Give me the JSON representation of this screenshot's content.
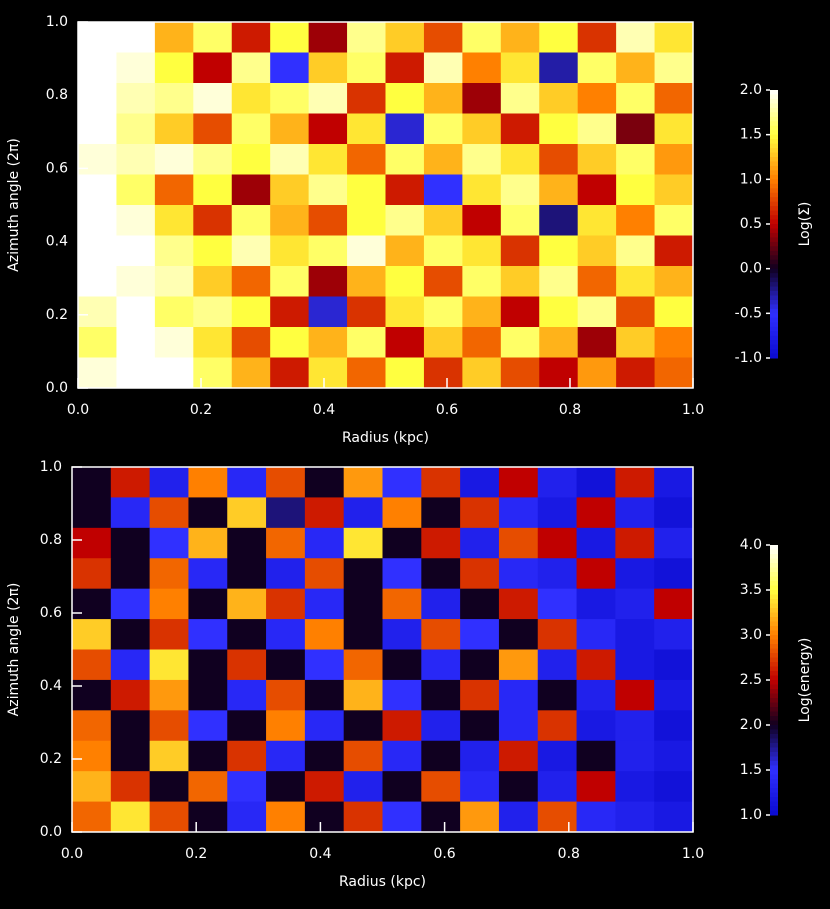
{
  "chart_data": [
    {
      "type": "heatmap",
      "xlabel": "Radius (kpc)",
      "ylabel": "Azimuth angle (2π)",
      "colorbar_label": "Log(Σ)",
      "xlim": [
        0,
        1
      ],
      "ylim": [
        0,
        1
      ],
      "xticks": [
        {
          "value": 0,
          "label": "0.0"
        },
        0.2,
        0.4,
        0.6,
        0.8,
        {
          "value": 1,
          "label": "1.0"
        }
      ],
      "yticks": [
        {
          "value": 0,
          "label": "0.0"
        },
        0.2,
        0.4,
        0.6,
        0.8,
        {
          "value": 1,
          "label": "1.0"
        }
      ],
      "zlim": [
        -1,
        2
      ],
      "zticks": [
        {
          "value": 2,
          "label": "2.0"
        },
        1.5,
        {
          "value": 1,
          "label": "1.0"
        },
        0.5,
        {
          "value": 0,
          "label": "0.0"
        },
        -0.5,
        {
          "value": -1,
          "label": "-1.0"
        }
      ],
      "colors": [
        "#0a0ad0",
        "#3030ff",
        "#100020",
        "#c00000",
        "#ff8000",
        "#ffff40",
        "#ffffff"
      ],
      "z": [
        [
          2.0,
          2.0,
          1.2,
          1.6,
          0.6,
          1.5,
          0.4,
          1.7,
          1.3,
          0.8,
          1.6,
          1.2,
          1.5,
          0.7,
          1.8,
          1.4
        ],
        [
          2.0,
          1.9,
          1.5,
          0.5,
          1.7,
          -0.5,
          1.3,
          1.6,
          0.6,
          1.8,
          1.0,
          1.4,
          -0.3,
          1.6,
          1.2,
          1.7
        ],
        [
          2.0,
          1.8,
          1.7,
          1.9,
          1.4,
          1.6,
          1.8,
          0.7,
          1.5,
          1.2,
          0.4,
          1.7,
          1.3,
          1.0,
          1.6,
          0.9
        ],
        [
          2.0,
          1.7,
          1.3,
          0.8,
          1.6,
          1.2,
          0.5,
          1.4,
          -0.4,
          1.6,
          1.3,
          0.6,
          1.5,
          1.7,
          0.3,
          1.4
        ],
        [
          1.9,
          1.8,
          1.9,
          1.7,
          1.5,
          1.8,
          1.4,
          0.9,
          1.6,
          1.2,
          1.7,
          1.4,
          0.8,
          1.3,
          1.6,
          1.1
        ],
        [
          2.0,
          1.6,
          0.9,
          1.5,
          0.4,
          1.3,
          1.7,
          1.5,
          0.6,
          -0.5,
          1.4,
          1.7,
          1.2,
          0.5,
          1.5,
          1.3
        ],
        [
          2.0,
          1.9,
          1.4,
          0.7,
          1.6,
          1.2,
          0.8,
          1.5,
          1.7,
          1.3,
          0.5,
          1.6,
          -0.2,
          1.4,
          1.0,
          1.6
        ],
        [
          2.0,
          2.0,
          1.7,
          1.5,
          1.8,
          1.4,
          1.6,
          1.9,
          1.2,
          1.6,
          1.4,
          0.7,
          1.5,
          1.3,
          1.7,
          0.6
        ],
        [
          2.0,
          1.9,
          1.8,
          1.3,
          0.9,
          1.6,
          0.4,
          1.2,
          1.5,
          0.8,
          1.6,
          1.3,
          1.7,
          0.9,
          1.4,
          1.2
        ],
        [
          1.8,
          2.0,
          1.6,
          1.7,
          1.5,
          0.6,
          -0.4,
          0.7,
          1.4,
          1.6,
          1.2,
          0.5,
          1.5,
          1.7,
          0.8,
          1.5
        ],
        [
          1.6,
          2.0,
          1.9,
          1.4,
          0.8,
          1.5,
          1.2,
          1.6,
          0.5,
          1.3,
          0.9,
          1.6,
          1.2,
          0.4,
          1.3,
          1.0
        ],
        [
          1.9,
          2.0,
          2.0,
          1.6,
          1.2,
          0.6,
          1.4,
          0.9,
          1.5,
          0.7,
          1.3,
          0.8,
          0.5,
          1.1,
          0.6,
          0.9
        ]
      ]
    },
    {
      "type": "heatmap",
      "xlabel": "Radius (kpc)",
      "ylabel": "Azimuth angle (2π)",
      "colorbar_label": "Log(energy)",
      "xlim": [
        0,
        1
      ],
      "ylim": [
        0,
        1
      ],
      "xticks": [
        {
          "value": 0,
          "label": "0.0"
        },
        0.2,
        0.4,
        0.6,
        0.8,
        {
          "value": 1,
          "label": "1.0"
        }
      ],
      "yticks": [
        {
          "value": 0,
          "label": "0.0"
        },
        0.2,
        0.4,
        0.6,
        0.8,
        {
          "value": 1,
          "label": "1.0"
        }
      ],
      "zlim": [
        1,
        4
      ],
      "zticks": [
        {
          "value": 4,
          "label": "4.0"
        },
        3.5,
        {
          "value": 3,
          "label": "3.0"
        },
        2.5,
        {
          "value": 2,
          "label": "2.0"
        },
        1.5,
        {
          "value": 1,
          "label": "1.0"
        }
      ],
      "colors": [
        "#0a0ad0",
        "#3030ff",
        "#100020",
        "#c00000",
        "#ff8000",
        "#ffff40",
        "#ffffff"
      ],
      "z": [
        [
          2.0,
          2.6,
          1.3,
          3.0,
          1.4,
          2.8,
          2.0,
          3.1,
          1.5,
          2.7,
          1.2,
          2.5,
          1.3,
          1.1,
          2.6,
          1.2
        ],
        [
          2.0,
          1.4,
          2.8,
          2.0,
          3.3,
          1.8,
          2.6,
          1.3,
          3.0,
          2.0,
          2.7,
          1.4,
          1.2,
          2.5,
          1.3,
          1.1
        ],
        [
          2.5,
          2.0,
          1.5,
          3.2,
          2.0,
          2.9,
          1.4,
          3.4,
          2.0,
          2.6,
          1.3,
          2.8,
          2.5,
          1.2,
          2.6,
          1.3
        ],
        [
          2.7,
          2.0,
          2.9,
          1.4,
          2.0,
          1.3,
          2.8,
          2.0,
          1.5,
          2.0,
          2.7,
          1.4,
          1.3,
          2.5,
          1.2,
          1.1
        ],
        [
          2.0,
          1.5,
          3.0,
          2.0,
          3.2,
          2.7,
          1.4,
          2.0,
          2.9,
          1.3,
          2.0,
          2.6,
          1.5,
          1.2,
          1.3,
          2.5
        ],
        [
          3.3,
          2.0,
          2.7,
          1.5,
          2.0,
          1.4,
          3.0,
          2.0,
          1.3,
          2.8,
          1.5,
          2.0,
          2.7,
          1.4,
          1.2,
          1.3
        ],
        [
          2.8,
          1.4,
          3.4,
          2.0,
          2.7,
          2.0,
          1.5,
          2.9,
          2.0,
          1.4,
          2.0,
          3.1,
          1.3,
          2.6,
          1.2,
          1.1
        ],
        [
          2.0,
          2.6,
          3.1,
          2.0,
          1.4,
          2.8,
          2.0,
          3.2,
          1.5,
          2.0,
          2.7,
          1.4,
          2.0,
          1.3,
          2.5,
          1.2
        ],
        [
          2.9,
          2.0,
          2.8,
          1.5,
          2.0,
          3.0,
          1.4,
          2.0,
          2.6,
          1.3,
          2.0,
          1.4,
          2.7,
          1.2,
          1.3,
          1.1
        ],
        [
          3.0,
          2.0,
          3.3,
          2.0,
          2.7,
          1.4,
          2.0,
          2.8,
          1.4,
          2.0,
          1.3,
          2.6,
          1.2,
          2.0,
          1.3,
          1.2
        ],
        [
          3.2,
          2.7,
          2.0,
          2.9,
          1.5,
          2.0,
          2.6,
          1.3,
          2.0,
          2.8,
          1.4,
          2.0,
          1.3,
          2.5,
          1.2,
          1.1
        ],
        [
          2.9,
          3.4,
          2.8,
          2.0,
          1.4,
          3.0,
          2.0,
          2.7,
          1.5,
          2.0,
          3.1,
          1.3,
          2.8,
          1.4,
          1.3,
          1.2
        ]
      ]
    }
  ]
}
